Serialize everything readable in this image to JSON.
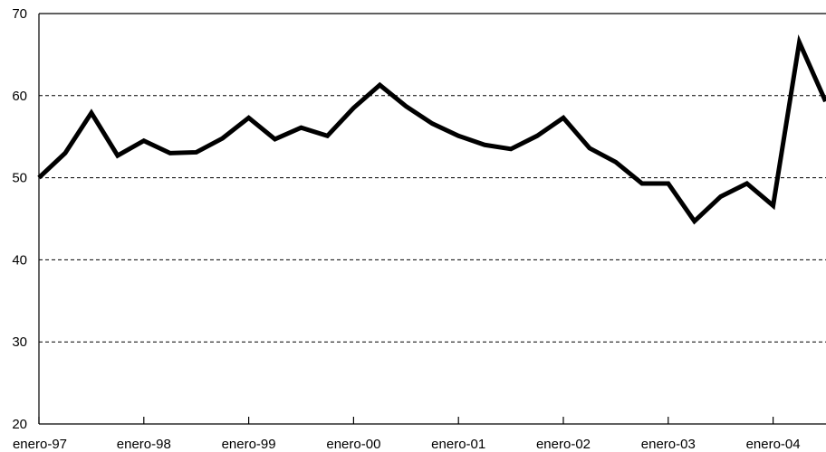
{
  "chart_data": {
    "type": "line",
    "title": "",
    "xlabel": "",
    "ylabel": "",
    "ylim": [
      20,
      70
    ],
    "yticks": [
      20,
      30,
      40,
      50,
      60,
      70
    ],
    "grid": "horizontal dashed",
    "legend": "none",
    "x": [
      "enero-97",
      "abril-97",
      "julio-97",
      "octubre-97",
      "enero-98",
      "abril-98",
      "julio-98",
      "octubre-98",
      "enero-99",
      "abril-99",
      "julio-99",
      "octubre-99",
      "enero-00",
      "abril-00",
      "julio-00",
      "octubre-00",
      "enero-01",
      "abril-01",
      "julio-01",
      "octubre-01",
      "enero-02",
      "abril-02",
      "julio-02",
      "octubre-02",
      "enero-03",
      "abril-03",
      "julio-03",
      "octubre-03",
      "enero-04",
      "abril-04",
      "julio-04"
    ],
    "xtick_labels": [
      "enero-97",
      "enero-98",
      "enero-99",
      "enero-00",
      "enero-01",
      "enero-02",
      "enero-03",
      "enero-04"
    ],
    "series": [
      {
        "values": [
          50.0,
          53.0,
          57.9,
          52.7,
          54.5,
          53.0,
          53.1,
          54.8,
          57.3,
          54.7,
          56.1,
          55.1,
          58.5,
          61.3,
          58.7,
          56.6,
          55.1,
          54.0,
          53.5,
          55.1,
          57.3,
          53.6,
          51.9,
          49.3,
          49.3,
          44.7,
          47.7,
          49.3,
          46.6,
          66.5,
          59.3
        ],
        "color": "#000000"
      }
    ]
  }
}
